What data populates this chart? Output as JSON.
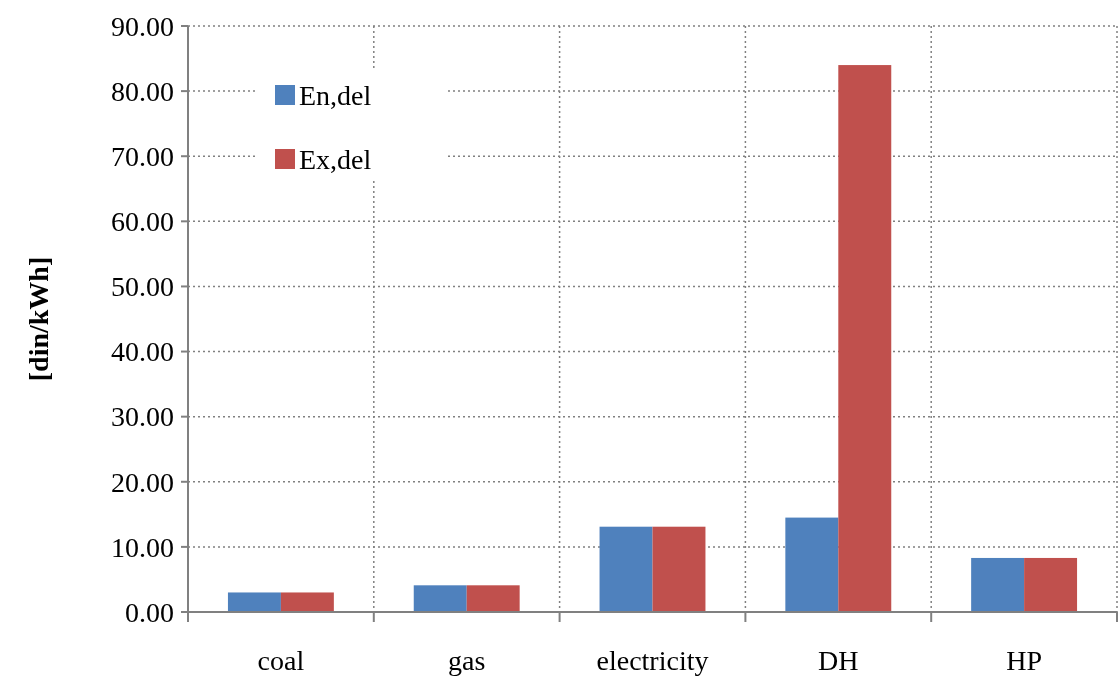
{
  "chart_data": {
    "type": "bar",
    "ylabel": "[din/kWh]",
    "categories": [
      "coal",
      "gas",
      "electricity",
      "DH",
      "HP"
    ],
    "series": [
      {
        "name": "En,del",
        "color": "#4f81bd",
        "values": [
          3.0,
          4.1,
          13.1,
          14.5,
          8.3
        ]
      },
      {
        "name": "Ex,del",
        "color": "#c0504d",
        "values": [
          3.0,
          4.1,
          13.1,
          84.0,
          8.3
        ]
      }
    ],
    "ylim": [
      0,
      90
    ],
    "yticks": [
      {
        "value": 0,
        "label": "0.00"
      },
      {
        "value": 10,
        "label": "10.00"
      },
      {
        "value": 20,
        "label": "20.00"
      },
      {
        "value": 30,
        "label": "30.00"
      },
      {
        "value": 40,
        "label": "40.00"
      },
      {
        "value": 50,
        "label": "50.00"
      },
      {
        "value": 60,
        "label": "60.00"
      },
      {
        "value": 70,
        "label": "70.00"
      },
      {
        "value": 80,
        "label": "80.00"
      },
      {
        "value": 90,
        "label": "90.00"
      }
    ],
    "grid": true,
    "legend": "top left"
  }
}
